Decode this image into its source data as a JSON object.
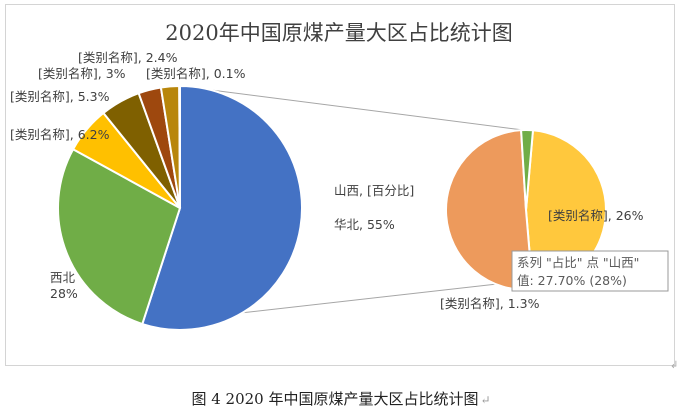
{
  "chart_data": {
    "type": "pie-of-pie",
    "title": "2020年中国原煤产量大区占比统计图",
    "primary_slices": [
      {
        "label": "华北",
        "value": 55,
        "label_text": "华北, 55%",
        "color": "#4472c4"
      },
      {
        "label": "西北",
        "value": 28,
        "label_text": "西北\n28%",
        "color": "#70ad47"
      },
      {
        "label": "[类别名称]",
        "value": 6.2,
        "label_text": "[类别名称], 6.2%",
        "color": "#ffc000"
      },
      {
        "label": "[类别名称]",
        "value": 5.3,
        "label_text": "[类别名称], 5.3%",
        "color": "#7f6000"
      },
      {
        "label": "[类别名称]",
        "value": 3,
        "label_text": "[类别名称], 3%",
        "color": "#9e480e"
      },
      {
        "label": "[类别名称]",
        "value": 2.4,
        "label_text": "[类别名称], 2.4%",
        "color": "#b8860b"
      },
      {
        "label": "[类别名称]",
        "value": 0.1,
        "label_text": "[类别名称], 0.1%",
        "color": "#806000"
      }
    ],
    "secondary_slices": [
      {
        "label": "[类别名称]",
        "value": 26,
        "label_text": "[类别名称], 26%",
        "color": "#ffc83d"
      },
      {
        "label": "山西",
        "value": 27.7,
        "label_text": "山西, [百分比]",
        "color": "#ed9a5c"
      },
      {
        "label": "[类别名称]",
        "value": 1.3,
        "label_text": "[类别名称], 1.3%",
        "color": "#70ad47"
      }
    ],
    "tooltip": {
      "line1": "系列 \"占比\" 点 \"山西\"",
      "line2": "值: 27.70% (28%)"
    }
  },
  "caption": "图 4 2020 年中国原煤产量大区占比统计图",
  "colors": {
    "connector": "#a6a6a6",
    "frame": "#d4d4d4",
    "tooltip_border": "#999999"
  }
}
